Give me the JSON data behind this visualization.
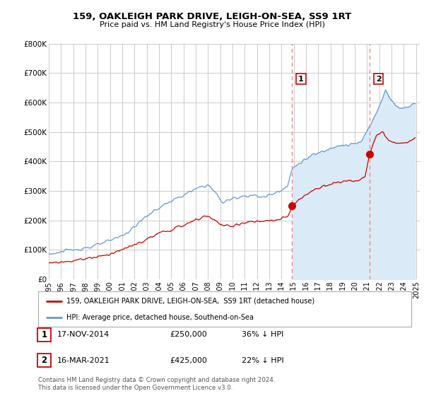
{
  "title": "159, OAKLEIGH PARK DRIVE, LEIGH-ON-SEA, SS9 1RT",
  "subtitle": "Price paid vs. HM Land Registry's House Price Index (HPI)",
  "legend_line1": "159, OAKLEIGH PARK DRIVE, LEIGH-ON-SEA,  SS9 1RT (detached house)",
  "legend_line2": "HPI: Average price, detached house, Southend-on-Sea",
  "sale1_date": "17-NOV-2014",
  "sale1_price": "£250,000",
  "sale1_pct": "36% ↓ HPI",
  "sale2_date": "16-MAR-2021",
  "sale2_price": "£425,000",
  "sale2_pct": "22% ↓ HPI",
  "footer": "Contains HM Land Registry data © Crown copyright and database right 2024.\nThis data is licensed under the Open Government Licence v3.0.",
  "ylim": [
    0,
    800000
  ],
  "yticks": [
    0,
    100000,
    200000,
    300000,
    400000,
    500000,
    600000,
    700000,
    800000
  ],
  "ytick_labels": [
    "£0",
    "£100K",
    "£200K",
    "£300K",
    "£400K",
    "£500K",
    "£600K",
    "£700K",
    "£800K"
  ],
  "sale1_x": 2014.88,
  "sale1_y": 250000,
  "sale2_x": 2021.21,
  "sale2_y": 425000,
  "shade_start": 2014.88,
  "line_color_red": "#cc0000",
  "line_color_blue": "#6699cc",
  "shade_color": "#daeaf7",
  "vline_color": "#ee8888",
  "background_color": "#ffffff",
  "grid_color": "#cccccc",
  "xlim_left": 1995.0,
  "xlim_right": 2025.3
}
